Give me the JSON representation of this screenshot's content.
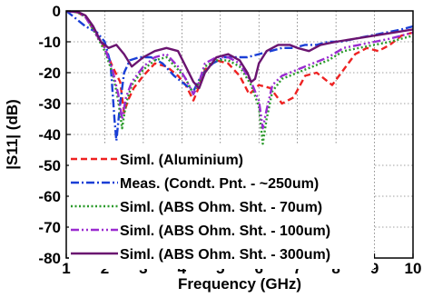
{
  "chart_data": {
    "type": "line",
    "title": "",
    "xlabel": "Frequency (GHz)",
    "ylabel": "|S11| (dB)",
    "xlim": [
      1,
      10
    ],
    "ylim": [
      -80,
      0
    ],
    "xticks": [
      "1",
      "2",
      "3",
      "4",
      "5",
      "6",
      "7",
      "8",
      "9",
      "10"
    ],
    "yticks": [
      "0",
      "-10",
      "-20",
      "-30",
      "-40",
      "-50",
      "-60",
      "-70",
      "-80"
    ],
    "grid": true,
    "legend_position": "bottom-left",
    "series": [
      {
        "name": "Siml. (Aluminium)",
        "color": "#ee2222",
        "dash": "dashed",
        "x": [
          1.0,
          1.3,
          1.5,
          1.7,
          2.0,
          2.2,
          2.4,
          2.5,
          2.6,
          2.75,
          3.0,
          3.3,
          3.6,
          3.9,
          4.1,
          4.3,
          4.4,
          4.6,
          4.9,
          5.2,
          5.5,
          5.75,
          6.0,
          6.3,
          6.6,
          6.9,
          7.2,
          7.5,
          7.7,
          7.9,
          8.2,
          8.5,
          8.8,
          9.1,
          9.4,
          9.7,
          10.0
        ],
        "y": [
          0,
          -0.5,
          -2,
          -6,
          -12,
          -18,
          -23,
          -33,
          -29,
          -25,
          -21,
          -17,
          -18,
          -21,
          -24,
          -29,
          -26,
          -19,
          -16,
          -17,
          -21,
          -27,
          -24,
          -25,
          -30,
          -28,
          -21,
          -20,
          -22,
          -24,
          -19,
          -14,
          -12,
          -13,
          -11,
          -8,
          -7
        ]
      },
      {
        "name": "Meas. (Condt. Pnt. - ~250um)",
        "color": "#1a3fd6",
        "dash": "dashdot",
        "x": [
          1.0,
          1.2,
          1.5,
          1.8,
          2.0,
          2.15,
          2.25,
          2.3,
          2.4,
          2.5,
          2.65,
          2.9,
          3.2,
          3.5,
          3.8,
          4.1,
          4.3,
          4.5,
          4.8,
          5.1,
          5.4,
          5.7,
          6.0,
          6.3,
          6.6,
          6.9,
          7.2,
          7.5,
          7.8,
          8.1,
          8.5,
          8.9,
          9.3,
          9.7,
          10.0
        ],
        "y": [
          0,
          -2,
          -5,
          -7,
          -10,
          -17,
          -35,
          -42,
          -30,
          -20,
          -16,
          -15,
          -15,
          -17,
          -21,
          -24,
          -26,
          -21,
          -17,
          -15,
          -15,
          -15,
          -14,
          -13,
          -12,
          -12,
          -11,
          -11,
          -10,
          -10,
          -9,
          -8,
          -7,
          -6,
          -5
        ]
      },
      {
        "name": "Siml. (ABS Ohm. Sht. - 70um)",
        "color": "#2a9a2a",
        "dash": "dotted",
        "x": [
          1.0,
          1.3,
          1.5,
          1.7,
          2.0,
          2.2,
          2.35,
          2.45,
          2.55,
          2.7,
          3.0,
          3.3,
          3.6,
          3.9,
          4.1,
          4.3,
          4.45,
          4.6,
          4.9,
          5.2,
          5.5,
          5.8,
          6.0,
          6.1,
          6.2,
          6.35,
          6.6,
          7.0,
          7.4,
          7.8,
          8.2,
          8.6,
          9.0,
          9.4,
          9.7,
          10.0
        ],
        "y": [
          0,
          -0.5,
          -2,
          -6,
          -13,
          -20,
          -29,
          -38,
          -30,
          -24,
          -19,
          -16,
          -15,
          -19,
          -22,
          -27,
          -23,
          -18,
          -16,
          -16,
          -18,
          -24,
          -31,
          -43,
          -35,
          -26,
          -22,
          -20,
          -18,
          -16,
          -13,
          -12,
          -11,
          -10,
          -9,
          -8
        ]
      },
      {
        "name": "Siml. (ABS Ohm. Sht. - 100um)",
        "color": "#9a2bd0",
        "dash": "dashdotdot",
        "x": [
          1.0,
          1.3,
          1.5,
          1.7,
          2.0,
          2.2,
          2.35,
          2.45,
          2.55,
          2.7,
          3.0,
          3.3,
          3.6,
          3.9,
          4.1,
          4.3,
          4.45,
          4.6,
          4.9,
          5.2,
          5.5,
          5.8,
          6.0,
          6.1,
          6.2,
          6.35,
          6.6,
          7.0,
          7.4,
          7.8,
          8.2,
          8.6,
          9.0,
          9.4,
          9.7,
          10.0
        ],
        "y": [
          0,
          -0.5,
          -2,
          -6,
          -12,
          -19,
          -27,
          -35,
          -28,
          -23,
          -18,
          -15,
          -14,
          -18,
          -22,
          -27,
          -23,
          -17,
          -15,
          -15,
          -17,
          -23,
          -29,
          -38,
          -32,
          -24,
          -21,
          -19,
          -17,
          -15,
          -12,
          -11,
          -10,
          -9,
          -8,
          -7
        ]
      },
      {
        "name": "Siml. (ABS Ohm. Sht. - 300um)",
        "color": "#6a1470",
        "dash": "solid",
        "x": [
          1.0,
          1.3,
          1.5,
          1.7,
          1.9,
          2.1,
          2.3,
          2.5,
          2.7,
          3.0,
          3.3,
          3.6,
          3.9,
          4.1,
          4.3,
          4.45,
          4.6,
          4.9,
          5.2,
          5.5,
          5.7,
          5.8,
          5.9,
          6.0,
          6.2,
          6.5,
          6.8,
          7.0,
          7.3,
          7.6,
          8.0,
          8.5,
          9.0,
          9.5,
          10.0
        ],
        "y": [
          0,
          -0.3,
          -1.5,
          -5,
          -10,
          -12,
          -11,
          -14,
          -18,
          -15,
          -13,
          -12,
          -13,
          -18,
          -23,
          -25,
          -20,
          -15,
          -14,
          -16,
          -20,
          -23,
          -22,
          -17,
          -13,
          -11,
          -11,
          -12,
          -13,
          -11,
          -10,
          -9,
          -8,
          -7,
          -6
        ]
      }
    ]
  }
}
